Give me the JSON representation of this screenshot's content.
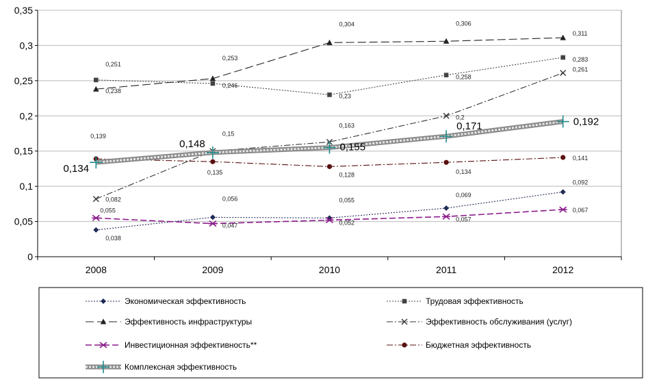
{
  "chart_data": {
    "type": "line",
    "title": "",
    "xlabel": "",
    "ylabel": "",
    "categories": [
      "2008",
      "2009",
      "2010",
      "2011",
      "2012"
    ],
    "ylim": [
      0,
      0.35
    ],
    "yticks": [
      "0",
      "0,05",
      "0,1",
      "0,15",
      "0,2",
      "0,25",
      "0,3",
      "0,35"
    ],
    "grid": true,
    "legend_position": "bottom",
    "series": [
      {
        "key": "econ",
        "name": "Экономическая эффективность",
        "values": [
          0.038,
          0.056,
          0.055,
          0.069,
          0.092
        ],
        "labels": [
          "0,038",
          "0,056",
          "0,055",
          "0,069",
          "0,092"
        ],
        "color": "#1f2a55",
        "marker": "diamond",
        "dash": "2,2"
      },
      {
        "key": "labor",
        "name": "Трудовая эффективность",
        "values": [
          0.251,
          0.246,
          0.23,
          0.258,
          0.283
        ],
        "labels": [
          "0,251",
          "0,246",
          "0,23",
          "0,258",
          "0,283"
        ],
        "color": "#444444",
        "marker": "square",
        "dash": "2,2"
      },
      {
        "key": "infra",
        "name": "Эффективность инфраструктуры",
        "values": [
          0.238,
          0.253,
          0.304,
          0.306,
          0.311
        ],
        "labels": [
          "0,238",
          "0,253",
          "0,304",
          "0,306",
          "0,311"
        ],
        "color": "#222222",
        "marker": "triangle",
        "dash": "12,5"
      },
      {
        "key": "service",
        "name": "Эффективность обслуживания (услуг)",
        "values": [
          0.082,
          0.15,
          0.163,
          0.2,
          0.261
        ],
        "labels": [
          "0,082",
          "0,15",
          "0,163",
          "0,2",
          "0,261"
        ],
        "color": "#333333",
        "marker": "x",
        "dash": "9,3,2,3"
      },
      {
        "key": "invest",
        "name": "Инвестиционная эффективность**",
        "values": [
          0.055,
          0.047,
          0.052,
          0.057,
          0.067
        ],
        "labels": [
          "0,055",
          "0,047",
          "0,052",
          "0,057",
          "0,067"
        ],
        "color": "#8b1a8b",
        "marker": "asterisk",
        "dash": "9,4"
      },
      {
        "key": "budget",
        "name": "Бюджетная эффективность",
        "values": [
          0.139,
          0.135,
          0.128,
          0.134,
          0.141
        ],
        "labels": [
          "0,139",
          "0,135",
          "0,128",
          "0,134",
          "0,141"
        ],
        "color": "#5a1010",
        "marker": "circle",
        "dash": "9,3,2,3"
      },
      {
        "key": "complex",
        "name": "Комплексная эффективность",
        "values": [
          0.134,
          0.148,
          0.155,
          0.171,
          0.192
        ],
        "labels": [
          "0,134",
          "0,148",
          "0,155",
          "0,171",
          "0,192"
        ],
        "color": "#9a9a9a",
        "marker": "plus",
        "dash": ""
      }
    ]
  }
}
